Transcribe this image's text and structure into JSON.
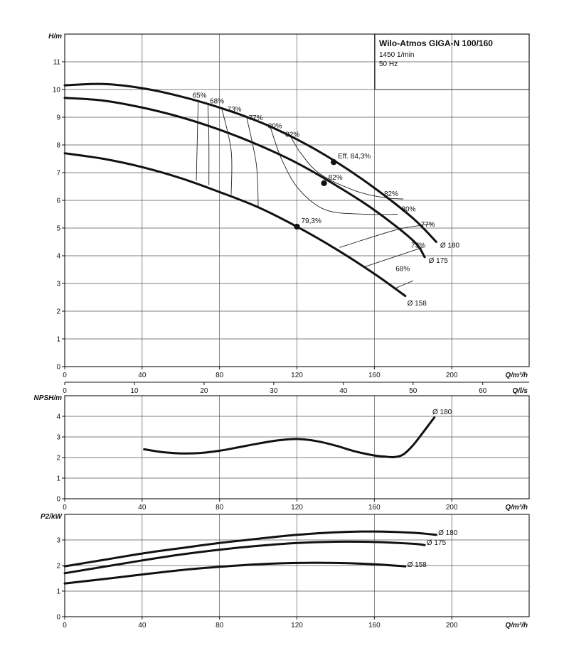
{
  "title_box": {
    "title": "Wilo-Atmos GIGA-N 100/160",
    "speed": "1450 1/min",
    "frequency": "50 Hz"
  },
  "chart_data": [
    {
      "id": "head",
      "type": "line",
      "ylabel": "H/m",
      "xlabel": "Q/m³/h",
      "xlabel2": "Q/l/s",
      "xlim": [
        0,
        240
      ],
      "ylim": [
        0,
        12
      ],
      "xticks": [
        0,
        40,
        80,
        120,
        160,
        200
      ],
      "yticks": [
        0,
        1,
        2,
        3,
        4,
        5,
        6,
        7,
        8,
        9,
        10,
        11
      ],
      "x2ticks": [
        0,
        10,
        20,
        30,
        40,
        50,
        60
      ],
      "grid": true,
      "series": [
        {
          "name": "Ø 180",
          "x": [
            0,
            20,
            40,
            60,
            80,
            100,
            120,
            140,
            160,
            180,
            192
          ],
          "y": [
            10.15,
            10.2,
            10.05,
            9.75,
            9.35,
            8.85,
            8.2,
            7.4,
            6.45,
            5.35,
            4.5
          ]
        },
        {
          "name": "Ø 175",
          "x": [
            0,
            20,
            40,
            60,
            80,
            100,
            120,
            140,
            160,
            180,
            186
          ],
          "y": [
            9.7,
            9.6,
            9.35,
            9.0,
            8.55,
            8.0,
            7.35,
            6.55,
            5.65,
            4.55,
            3.95
          ]
        },
        {
          "name": "Ø 158",
          "x": [
            0,
            20,
            40,
            60,
            80,
            100,
            120,
            140,
            160,
            176
          ],
          "y": [
            7.7,
            7.5,
            7.2,
            6.8,
            6.3,
            5.75,
            5.05,
            4.25,
            3.35,
            2.55
          ]
        }
      ],
      "markers": [
        {
          "x": 139,
          "y": 7.38,
          "label": "Eff. 84,3%"
        },
        {
          "x": 134,
          "y": 6.62,
          "label": "82%"
        },
        {
          "x": 120,
          "y": 5.05,
          "label": "79,3%"
        }
      ],
      "efficiency_lines": [
        {
          "label": "65%",
          "x": [
            69,
            68.5,
            68
          ],
          "y": [
            9.6,
            8.2,
            6.7
          ],
          "lx": 66,
          "ly": 9.7
        },
        {
          "label": "68%",
          "x": [
            74,
            74.5,
            74.5
          ],
          "y": [
            9.5,
            8.1,
            6.55
          ],
          "lx": 75,
          "ly": 9.5
        },
        {
          "label": "73%",
          "x": [
            81,
            86,
            86
          ],
          "y": [
            9.35,
            7.8,
            6.2
          ],
          "lx": 84,
          "ly": 9.2
        },
        {
          "label": "77%",
          "x": [
            94,
            99,
            100
          ],
          "y": [
            9.0,
            7.3,
            5.75
          ],
          "lx": 95,
          "ly": 8.9
        },
        {
          "label": "80%",
          "x": [
            106,
            112,
            121,
            135,
            155,
            172
          ],
          "y": [
            8.7,
            7.5,
            6.4,
            5.65,
            5.5,
            5.5
          ],
          "lx": 105,
          "ly": 8.6
        },
        {
          "label": "82%",
          "x": [
            116,
            122,
            132,
            150,
            165,
            175
          ],
          "y": [
            8.4,
            7.7,
            6.95,
            6.35,
            6.1,
            6.05
          ],
          "lx": 114,
          "ly": 8.3
        },
        {
          "label": "82%",
          "lx": 165,
          "ly": 6.15
        },
        {
          "label": "80%",
          "lx": 174,
          "ly": 5.6
        },
        {
          "label": "77%",
          "x": [
            142,
            160,
            175,
            190
          ],
          "y": [
            4.3,
            4.7,
            5.0,
            5.15
          ],
          "lx": 184,
          "ly": 5.05
        },
        {
          "label": "73%",
          "x": [
            155,
            170,
            185
          ],
          "y": [
            3.6,
            3.95,
            4.3
          ],
          "lx": 179,
          "ly": 4.3
        },
        {
          "label": "68%",
          "x": [
            170,
            180
          ],
          "y": [
            2.8,
            3.1
          ],
          "lx": 171,
          "ly": 3.45
        }
      ],
      "series_labels": [
        {
          "text": "Ø 180",
          "x": 194,
          "y": 4.3
        },
        {
          "text": "Ø 175",
          "x": 188,
          "y": 3.75
        },
        {
          "text": "Ø 158",
          "x": 177,
          "y": 2.2
        }
      ]
    },
    {
      "id": "npsh",
      "type": "line",
      "ylabel": "NPSH/m",
      "xlabel": "Q/m³/h",
      "xlim": [
        0,
        240
      ],
      "ylim": [
        0,
        5
      ],
      "xticks": [
        0,
        40,
        80,
        120,
        160,
        200
      ],
      "yticks": [
        0,
        1,
        2,
        3,
        4
      ],
      "grid": true,
      "series": [
        {
          "name": "Ø 180",
          "x": [
            41,
            50,
            60,
            70,
            80,
            90,
            100,
            110,
            120,
            130,
            140,
            150,
            160,
            165,
            170,
            175,
            180,
            185,
            191
          ],
          "y": [
            2.4,
            2.27,
            2.2,
            2.22,
            2.33,
            2.5,
            2.68,
            2.83,
            2.9,
            2.8,
            2.58,
            2.3,
            2.1,
            2.05,
            2.02,
            2.15,
            2.6,
            3.2,
            3.95
          ]
        }
      ],
      "series_labels": [
        {
          "text": "Ø 180",
          "x": 190,
          "y": 4.1
        }
      ]
    },
    {
      "id": "power",
      "type": "line",
      "ylabel": "P2/kW",
      "xlabel": "Q/m³/h",
      "xlim": [
        0,
        240
      ],
      "ylim": [
        0,
        4
      ],
      "xticks": [
        0,
        40,
        80,
        120,
        160,
        200
      ],
      "yticks": [
        0,
        1,
        2,
        3
      ],
      "grid": true,
      "series": [
        {
          "name": "Ø 180",
          "x": [
            0,
            20,
            40,
            60,
            80,
            100,
            120,
            140,
            160,
            180,
            192
          ],
          "y": [
            1.97,
            2.22,
            2.47,
            2.68,
            2.88,
            3.05,
            3.2,
            3.3,
            3.33,
            3.28,
            3.2
          ]
        },
        {
          "name": "Ø 175",
          "x": [
            0,
            20,
            40,
            60,
            80,
            100,
            120,
            140,
            160,
            180,
            186
          ],
          "y": [
            1.7,
            1.95,
            2.2,
            2.43,
            2.62,
            2.77,
            2.88,
            2.93,
            2.92,
            2.85,
            2.8
          ]
        },
        {
          "name": "Ø 158",
          "x": [
            0,
            20,
            40,
            60,
            80,
            100,
            120,
            140,
            160,
            176
          ],
          "y": [
            1.3,
            1.47,
            1.65,
            1.82,
            1.95,
            2.05,
            2.1,
            2.1,
            2.05,
            1.97
          ]
        }
      ],
      "series_labels": [
        {
          "text": "Ø 180",
          "x": 193,
          "y": 3.2
        },
        {
          "text": "Ø 175",
          "x": 187,
          "y": 2.8
        },
        {
          "text": "Ø 158",
          "x": 177,
          "y": 1.95
        }
      ]
    }
  ]
}
